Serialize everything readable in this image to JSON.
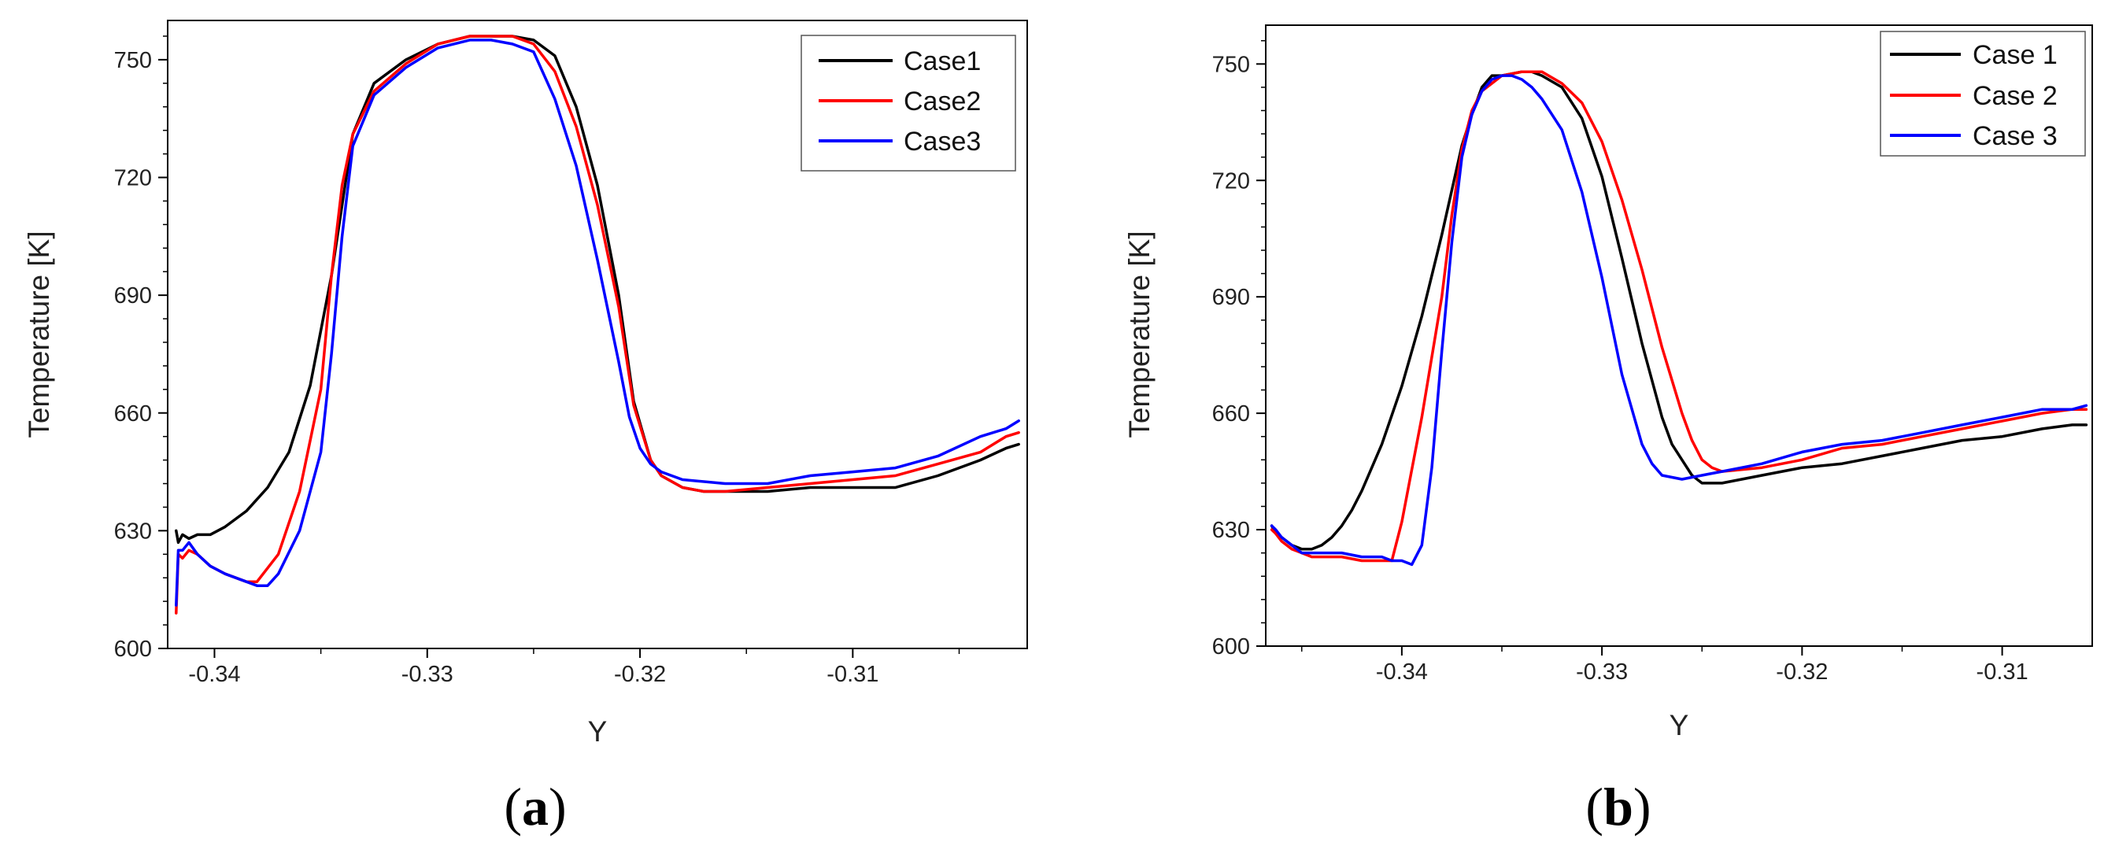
{
  "chart_data": [
    {
      "type": "line",
      "panel_label": "a",
      "xlabel": "Y",
      "ylabel": "Temperature [K]",
      "xlim": [
        -0.3422,
        -0.3018
      ],
      "ylim": [
        600,
        760
      ],
      "xticks": [
        -0.34,
        -0.33,
        -0.32,
        -0.31
      ],
      "xtick_labels": [
        "-0.34",
        "-0.33",
        "-0.32",
        "-0.31"
      ],
      "yticks": [
        600,
        630,
        660,
        690,
        720,
        750
      ],
      "ytick_labels": [
        "600",
        "630",
        "660",
        "690",
        "720",
        "750"
      ],
      "legend_position": "top-right",
      "series": [
        {
          "name": "Case1",
          "color": "#000000",
          "x": [
            -0.3418,
            -0.3417,
            -0.3415,
            -0.3412,
            -0.3408,
            -0.3402,
            -0.3395,
            -0.3385,
            -0.3375,
            -0.3365,
            -0.3355,
            -0.3345,
            -0.3335,
            -0.3325,
            -0.331,
            -0.3295,
            -0.328,
            -0.327,
            -0.326,
            -0.325,
            -0.324,
            -0.323,
            -0.322,
            -0.321,
            -0.3203,
            -0.3195,
            -0.319,
            -0.318,
            -0.317,
            -0.316,
            -0.314,
            -0.312,
            -0.31,
            -0.308,
            -0.306,
            -0.304,
            -0.3028,
            -0.3022
          ],
          "y": [
            630,
            627,
            629,
            628,
            629,
            629,
            631,
            635,
            641,
            650,
            667,
            695,
            731,
            744,
            750,
            754,
            756,
            756,
            756,
            755,
            751,
            738,
            718,
            690,
            663,
            648,
            644,
            641,
            640,
            640,
            640,
            641,
            641,
            641,
            644,
            648,
            651,
            652
          ]
        },
        {
          "name": "Case2",
          "color": "#ff0000",
          "x": [
            -0.3418,
            -0.3417,
            -0.3415,
            -0.3412,
            -0.3408,
            -0.3402,
            -0.3395,
            -0.339,
            -0.3385,
            -0.338,
            -0.337,
            -0.336,
            -0.335,
            -0.3345,
            -0.334,
            -0.3335,
            -0.3325,
            -0.331,
            -0.3295,
            -0.328,
            -0.327,
            -0.326,
            -0.325,
            -0.324,
            -0.323,
            -0.322,
            -0.321,
            -0.3203,
            -0.3195,
            -0.319,
            -0.318,
            -0.317,
            -0.316,
            -0.314,
            -0.312,
            -0.31,
            -0.308,
            -0.306,
            -0.304,
            -0.3028,
            -0.3022
          ],
          "y": [
            609,
            624,
            623,
            625,
            624,
            621,
            619,
            618,
            617,
            617,
            624,
            640,
            666,
            695,
            718,
            731,
            742,
            749,
            754,
            756,
            756,
            756,
            754,
            747,
            733,
            713,
            687,
            662,
            648,
            644,
            641,
            640,
            640,
            641,
            642,
            643,
            644,
            647,
            650,
            654,
            655
          ]
        },
        {
          "name": "Case3",
          "color": "#0000ff",
          "x": [
            -0.3418,
            -0.3417,
            -0.3415,
            -0.3412,
            -0.3408,
            -0.3402,
            -0.3395,
            -0.339,
            -0.3385,
            -0.338,
            -0.3375,
            -0.337,
            -0.336,
            -0.335,
            -0.3345,
            -0.334,
            -0.3335,
            -0.3325,
            -0.331,
            -0.3295,
            -0.328,
            -0.327,
            -0.326,
            -0.325,
            -0.324,
            -0.323,
            -0.322,
            -0.321,
            -0.3205,
            -0.32,
            -0.3195,
            -0.319,
            -0.318,
            -0.316,
            -0.314,
            -0.312,
            -0.31,
            -0.308,
            -0.306,
            -0.304,
            -0.3028,
            -0.3022
          ],
          "y": [
            611,
            625,
            625,
            627,
            624,
            621,
            619,
            618,
            617,
            616,
            616,
            619,
            630,
            650,
            675,
            705,
            728,
            741,
            748,
            753,
            755,
            755,
            754,
            752,
            740,
            723,
            699,
            673,
            659,
            651,
            647,
            645,
            643,
            642,
            642,
            644,
            645,
            646,
            649,
            654,
            656,
            658
          ]
        }
      ]
    },
    {
      "type": "line",
      "panel_label": "b",
      "xlabel": "Y",
      "ylabel": "Temperature [K]",
      "xlim": [
        -0.3468,
        -0.3055
      ],
      "ylim": [
        600,
        760
      ],
      "xticks": [
        -0.34,
        -0.33,
        -0.32,
        -0.31
      ],
      "xtick_labels": [
        "-0.34",
        "-0.33",
        "-0.32",
        "-0.31"
      ],
      "yticks": [
        600,
        630,
        660,
        690,
        720,
        750
      ],
      "ytick_labels": [
        "600",
        "630",
        "660",
        "690",
        "720",
        "750"
      ],
      "legend_position": "top-right",
      "series": [
        {
          "name": "Case 1",
          "color": "#000000",
          "x": [
            -0.3465,
            -0.3463,
            -0.346,
            -0.3455,
            -0.345,
            -0.3445,
            -0.344,
            -0.3435,
            -0.343,
            -0.3425,
            -0.342,
            -0.341,
            -0.34,
            -0.339,
            -0.338,
            -0.337,
            -0.3365,
            -0.336,
            -0.3355,
            -0.335,
            -0.334,
            -0.3335,
            -0.333,
            -0.332,
            -0.331,
            -0.33,
            -0.329,
            -0.328,
            -0.327,
            -0.3265,
            -0.326,
            -0.3255,
            -0.325,
            -0.324,
            -0.322,
            -0.32,
            -0.318,
            -0.316,
            -0.314,
            -0.312,
            -0.31,
            -0.308,
            -0.3065,
            -0.3058
          ],
          "y": [
            631,
            629,
            628,
            626,
            625,
            625,
            626,
            628,
            631,
            635,
            640,
            652,
            667,
            685,
            706,
            729,
            737,
            744,
            747,
            747,
            748,
            748,
            747,
            744,
            736,
            721,
            700,
            678,
            659,
            652,
            648,
            644,
            642,
            642,
            644,
            646,
            647,
            649,
            651,
            653,
            654,
            656,
            657,
            657
          ]
        },
        {
          "name": "Case 2",
          "color": "#ff0000",
          "x": [
            -0.3465,
            -0.3463,
            -0.346,
            -0.3455,
            -0.345,
            -0.3445,
            -0.344,
            -0.3435,
            -0.343,
            -0.342,
            -0.341,
            -0.3405,
            -0.34,
            -0.339,
            -0.338,
            -0.3375,
            -0.337,
            -0.3365,
            -0.336,
            -0.3355,
            -0.335,
            -0.334,
            -0.3335,
            -0.333,
            -0.332,
            -0.331,
            -0.33,
            -0.329,
            -0.328,
            -0.327,
            -0.326,
            -0.3255,
            -0.325,
            -0.3245,
            -0.324,
            -0.322,
            -0.32,
            -0.318,
            -0.316,
            -0.314,
            -0.312,
            -0.31,
            -0.308,
            -0.3065,
            -0.3058
          ],
          "y": [
            630,
            629,
            627,
            625,
            624,
            623,
            623,
            623,
            623,
            622,
            622,
            622,
            632,
            659,
            690,
            711,
            728,
            738,
            743,
            745,
            747,
            748,
            748,
            748,
            745,
            740,
            730,
            715,
            697,
            677,
            660,
            653,
            648,
            646,
            645,
            646,
            648,
            651,
            652,
            654,
            656,
            658,
            660,
            661,
            661
          ]
        },
        {
          "name": "Case 3",
          "color": "#0000ff",
          "x": [
            -0.3465,
            -0.3463,
            -0.346,
            -0.3455,
            -0.345,
            -0.3445,
            -0.344,
            -0.343,
            -0.342,
            -0.341,
            -0.3405,
            -0.34,
            -0.3395,
            -0.339,
            -0.3385,
            -0.338,
            -0.3375,
            -0.337,
            -0.3365,
            -0.336,
            -0.3355,
            -0.335,
            -0.3345,
            -0.334,
            -0.3335,
            -0.333,
            -0.332,
            -0.331,
            -0.33,
            -0.329,
            -0.328,
            -0.3275,
            -0.327,
            -0.326,
            -0.325,
            -0.324,
            -0.322,
            -0.32,
            -0.318,
            -0.316,
            -0.314,
            -0.312,
            -0.31,
            -0.308,
            -0.3065,
            -0.3058
          ],
          "y": [
            631,
            630,
            628,
            626,
            624,
            624,
            624,
            624,
            623,
            623,
            622,
            622,
            621,
            626,
            646,
            676,
            704,
            726,
            737,
            743,
            746,
            747,
            747,
            746,
            744,
            741,
            733,
            717,
            695,
            670,
            652,
            647,
            644,
            643,
            644,
            645,
            647,
            650,
            652,
            653,
            655,
            657,
            659,
            661,
            661,
            662
          ]
        }
      ]
    }
  ]
}
